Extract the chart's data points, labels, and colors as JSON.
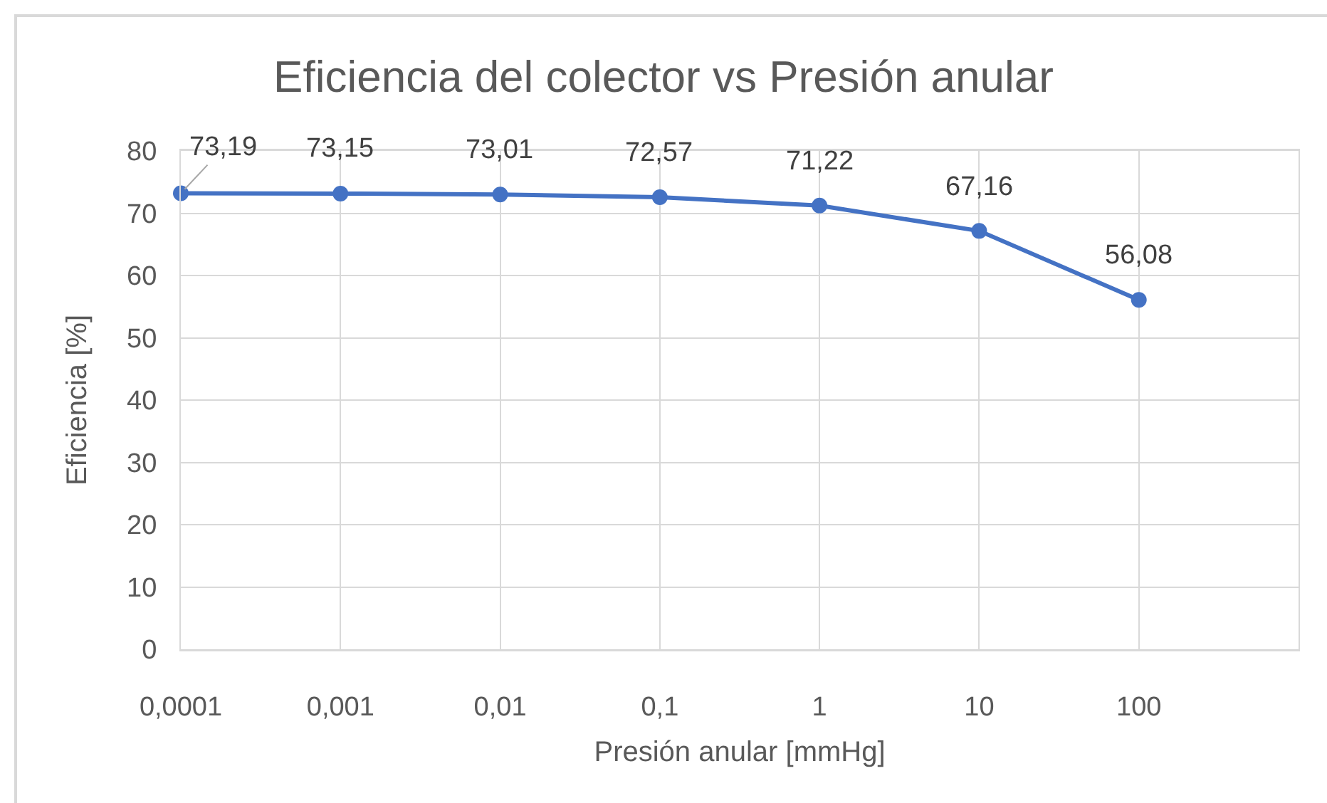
{
  "chart_data": {
    "type": "line",
    "title": "Eficiencia del colector vs Presión anular",
    "xlabel": "Presión anular [mmHg]",
    "ylabel": "Eficiencia [%]",
    "x": [
      0.0001,
      0.001,
      0.01,
      0.1,
      1,
      10,
      100
    ],
    "series": [
      {
        "color": "#4472c4",
        "values": [
          73.19,
          73.15,
          73.01,
          72.57,
          71.22,
          67.16,
          56.08
        ],
        "value_labels": [
          "73,19",
          "73,15",
          "73,01",
          "72,57",
          "71,22",
          "67,16",
          "56,08"
        ]
      }
    ],
    "log": "x",
    "xlim": [
      0.0001,
      1000
    ],
    "xticks": [
      {
        "value": 0.0001,
        "label": "0,0001"
      },
      {
        "value": 0.001,
        "label": "0,001"
      },
      {
        "value": 0.01,
        "label": "0,01"
      },
      {
        "value": 0.1,
        "label": "0,1"
      },
      {
        "value": 1,
        "label": "1"
      },
      {
        "value": 10,
        "label": "10"
      },
      {
        "value": 100,
        "label": "100"
      },
      {
        "value": 1000,
        "label": null
      }
    ],
    "ylim": [
      0,
      80
    ],
    "yticks": [
      0,
      10,
      20,
      30,
      40,
      50,
      60,
      70,
      80
    ],
    "grid": true,
    "marker": "circle",
    "line_style": "solid"
  }
}
